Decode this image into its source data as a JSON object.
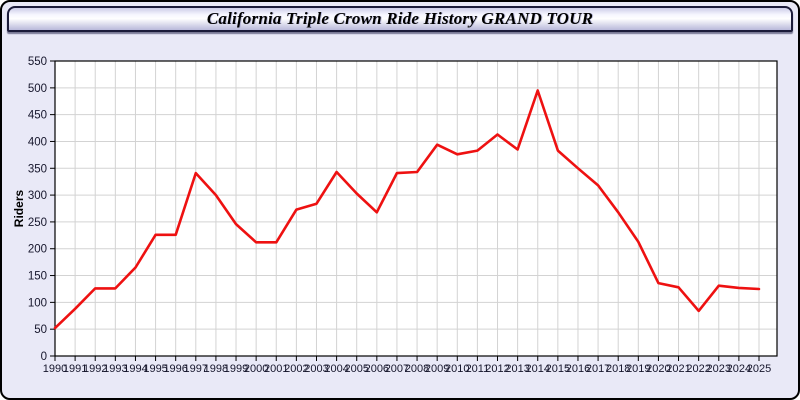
{
  "window": {
    "title": "California Triple Crown Ride History GRAND TOUR"
  },
  "chart_data": {
    "type": "line",
    "title": "California Triple Crown Ride History GRAND TOUR",
    "xlabel": "",
    "ylabel": "Riders",
    "ylim": [
      0,
      550
    ],
    "y_ticks": [
      0,
      50,
      100,
      150,
      200,
      250,
      300,
      350,
      400,
      450,
      500,
      550
    ],
    "grid": true,
    "legend": "none",
    "x": [
      1990,
      1991,
      1992,
      1993,
      1994,
      1995,
      1996,
      1997,
      1998,
      1999,
      2000,
      2001,
      2002,
      2003,
      2004,
      2005,
      2006,
      2007,
      2008,
      2009,
      2010,
      2011,
      2012,
      2013,
      2014,
      2015,
      2016,
      2017,
      2018,
      2019,
      2020,
      2021,
      2022,
      2023,
      2024,
      2025
    ],
    "series": [
      {
        "name": "Riders",
        "color": "#ee1111",
        "values": [
          52,
          88,
          126,
          126,
          165,
          226,
          226,
          341,
          300,
          246,
          212,
          212,
          273,
          284,
          343,
          303,
          268,
          341,
          343,
          394,
          376,
          383,
          413,
          385,
          495,
          383,
          350,
          318,
          268,
          213,
          136,
          128,
          84,
          131,
          127,
          125
        ]
      }
    ],
    "colors": {
      "plot_bg": "#ffffff",
      "grid": "#d3d3d3",
      "axis": "#000000",
      "tick_label": "#16162c",
      "panel_bg": "#e9e9f7"
    }
  }
}
